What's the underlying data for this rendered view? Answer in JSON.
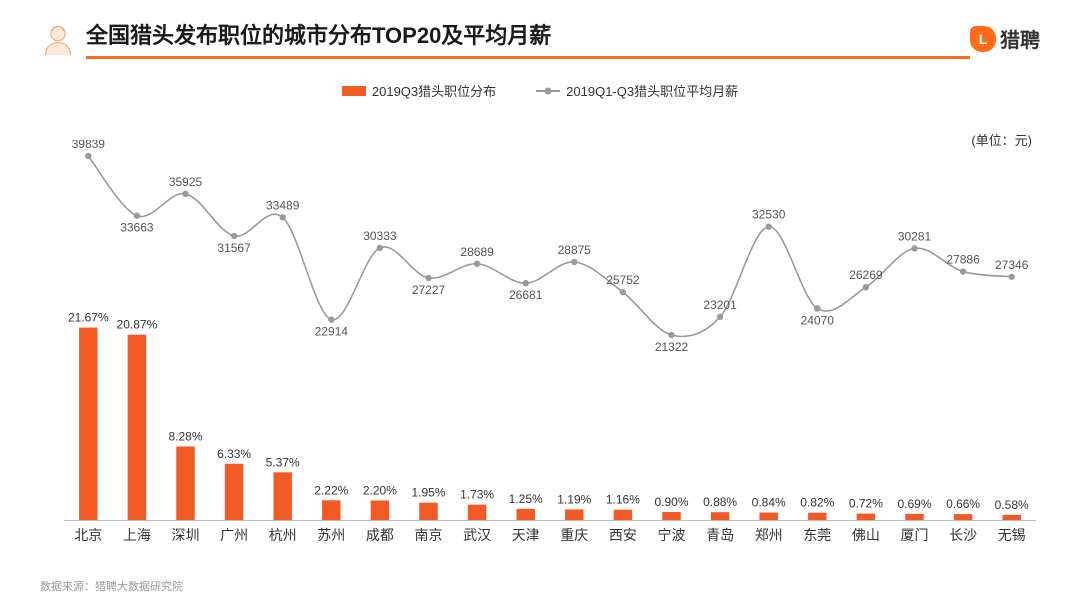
{
  "header": {
    "title": "全国猎头发布职位的城市分布TOP20及平均月薪",
    "logo_text": "猎聘",
    "logo_letter": "L"
  },
  "legend": {
    "bar_label": "2019Q3猎头职位分布",
    "line_label": "2019Q1-Q3猎头职位平均月薪"
  },
  "unit_label": "(单位：元)",
  "footer": "数据来源：猎聘大数据研究院",
  "chart": {
    "type": "bar+line",
    "categories": [
      "北京",
      "上海",
      "深圳",
      "广州",
      "杭州",
      "苏州",
      "成都",
      "南京",
      "武汉",
      "天津",
      "重庆",
      "西安",
      "宁波",
      "青岛",
      "郑州",
      "东莞",
      "佛山",
      "厦门",
      "长沙",
      "无锡"
    ],
    "bar_values_pct": [
      21.67,
      20.87,
      8.28,
      6.33,
      5.37,
      2.22,
      2.2,
      1.95,
      1.73,
      1.25,
      1.19,
      1.16,
      0.9,
      0.88,
      0.84,
      0.82,
      0.72,
      0.69,
      0.66,
      0.58
    ],
    "line_values": [
      39839,
      33663,
      35925,
      31567,
      33489,
      22914,
      30333,
      27227,
      28689,
      26681,
      28875,
      25752,
      21322,
      23201,
      32530,
      24070,
      26269,
      30281,
      27886,
      27346
    ],
    "bar_color": "#f15a24",
    "line_color": "#9a9a9a",
    "marker_color": "#9a9a9a",
    "background_color": "#ffffff",
    "bar_width_ratio": 0.38,
    "bar_label_fontsize": 12,
    "line_label_fontsize": 12,
    "xaxis_fontsize": 14,
    "marker_radius": 3.2,
    "line_width": 1.6,
    "bar_y_max": 25,
    "line_y_min": 21322,
    "line_y_max": 39839,
    "title_fontsize": 22,
    "underline_color": "#ff6b1a",
    "text_color": "#333333"
  },
  "icon": {
    "name": "person-headhunter-icon",
    "stroke": "#f9c9a8",
    "fill": "#fde9db"
  }
}
